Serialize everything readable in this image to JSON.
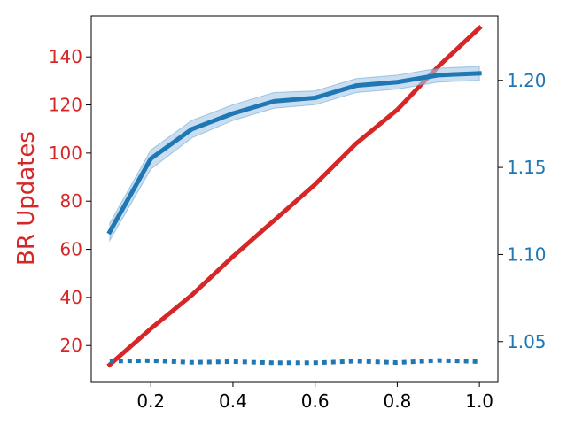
{
  "chart_data": {
    "type": "line",
    "title": "",
    "xlabel": "",
    "ylabel": "BR Updates",
    "y2label": "",
    "grid": false,
    "legend": "none",
    "colors": {
      "left_axis": "#d62728",
      "right_axis": "#1f77b4",
      "band": "#a6c8e8",
      "axis": "#000000"
    },
    "xlim": [
      0.055,
      1.045
    ],
    "ylim": [
      5,
      157
    ],
    "y2lim": [
      1.027,
      1.237
    ],
    "x_ticks": [
      {
        "value": 0.2,
        "label": "0.2"
      },
      {
        "value": 0.4,
        "label": "0.4"
      },
      {
        "value": 0.6,
        "label": "0.6"
      },
      {
        "value": 0.8,
        "label": "0.8"
      },
      {
        "value": 1.0,
        "label": "1.0"
      }
    ],
    "y_ticks": [
      {
        "value": 20,
        "label": "20"
      },
      {
        "value": 40,
        "label": "40"
      },
      {
        "value": 60,
        "label": "60"
      },
      {
        "value": 80,
        "label": "80"
      },
      {
        "value": 100,
        "label": "100"
      },
      {
        "value": 120,
        "label": "120"
      },
      {
        "value": 140,
        "label": "140"
      }
    ],
    "y2_ticks": [
      {
        "value": 1.05,
        "label": "1.05"
      },
      {
        "value": 1.1,
        "label": "1.10"
      },
      {
        "value": 1.15,
        "label": "1.15"
      },
      {
        "value": 1.2,
        "label": "1.20"
      }
    ],
    "x": [
      0.1,
      0.2,
      0.3,
      0.4,
      0.5,
      0.6,
      0.7,
      0.8,
      0.9,
      1.0
    ],
    "series": [
      {
        "axis": "left",
        "style": "solid",
        "color": "#d62728",
        "values": [
          12,
          27,
          41,
          57,
          72,
          87,
          104,
          118,
          136,
          152
        ]
      },
      {
        "axis": "right",
        "style": "solid",
        "color": "#1f77b4",
        "values": [
          1.113,
          1.155,
          1.172,
          1.181,
          1.188,
          1.19,
          1.197,
          1.199,
          1.203,
          1.204
        ],
        "band_upper": [
          1.118,
          1.16,
          1.177,
          1.186,
          1.193,
          1.194,
          1.201,
          1.203,
          1.207,
          1.208
        ],
        "band_lower": [
          1.108,
          1.149,
          1.167,
          1.177,
          1.184,
          1.186,
          1.193,
          1.195,
          1.199,
          1.2
        ]
      },
      {
        "axis": "left",
        "style": "dotted",
        "color": "#1f77b4",
        "values": [
          13.5,
          13.7,
          13.0,
          13.3,
          12.8,
          12.8,
          13.5,
          12.9,
          13.8,
          13.3
        ]
      }
    ]
  }
}
